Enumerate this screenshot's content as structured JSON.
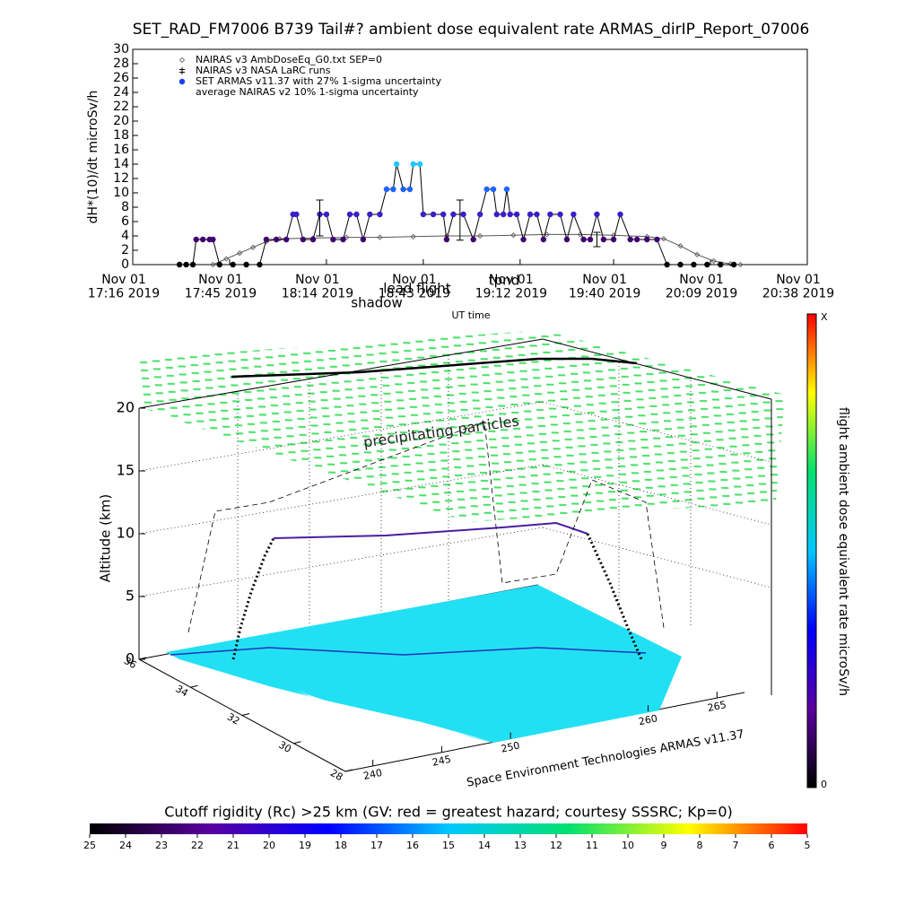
{
  "chart_data": [
    {
      "type": "line",
      "title": "SET_RAD_FM7006  B739 Tail#? ambient dose equivalent rate ARMAS_dirIP_Report_07006",
      "ylabel": "dH*(10)/dt microSv/h",
      "xlabel": "UT time",
      "xlim": [
        "17:16",
        "20:38"
      ],
      "xticks": [
        {
          "value": "17:16",
          "label": "Nov 01\n17:16 2019"
        },
        {
          "value": "17:45",
          "label": "Nov 01\n17:45 2019"
        },
        {
          "value": "18:14",
          "label": "Nov 01\n18:14 2019"
        },
        {
          "value": "18:43",
          "label": "Nov 01\n18:43 2019"
        },
        {
          "value": "19:12",
          "label": "Nov 01\n19:12 2019"
        },
        {
          "value": "19:40",
          "label": "Nov 01\n19:40 2019"
        },
        {
          "value": "20:09",
          "label": "Nov 01\n20:09 2019"
        },
        {
          "value": "20:38",
          "label": "Nov 01\n20:38 2019"
        }
      ],
      "ylim": [
        0,
        30
      ],
      "yticks": [
        0,
        2,
        4,
        6,
        8,
        10,
        12,
        14,
        16,
        18,
        20,
        22,
        24,
        26,
        28,
        30
      ],
      "legend": "upper left",
      "annotations": [
        "shadow",
        "lead flight",
        "tpnd"
      ],
      "series": [
        {
          "name": "NAIRAS v3 AmbDoseEq_G0.txt SEP=0",
          "marker": "diamond",
          "color": "#555555",
          "x": [
            "17:40",
            "17:44",
            "17:48",
            "17:52",
            "17:56",
            "18:00",
            "18:10",
            "18:20",
            "18:30",
            "18:40",
            "18:50",
            "19:00",
            "19:10",
            "19:20",
            "19:30",
            "19:40",
            "19:50",
            "19:55",
            "20:00",
            "20:05",
            "20:10",
            "20:15",
            "20:18"
          ],
          "values": [
            0,
            0.8,
            1.6,
            2.4,
            3.2,
            3.6,
            3.7,
            3.8,
            3.8,
            3.9,
            4.0,
            4.0,
            4.1,
            4.2,
            4.2,
            4.1,
            3.9,
            3.6,
            2.6,
            1.4,
            0.5,
            0.1,
            0
          ]
        },
        {
          "name": "NAIRAS v3 NASA LaRC runs",
          "marker": "plus",
          "color": "#000000",
          "x": [],
          "values": []
        },
        {
          "name": "SET ARMAS v11.37 with 27% 1-sigma uncertainty",
          "marker": "circle",
          "color": "#1e3cff",
          "x": [
            "17:30",
            "17:32",
            "17:34",
            "17:35",
            "17:37",
            "17:39",
            "17:40",
            "17:42",
            "17:46",
            "17:50",
            "17:54",
            "17:56",
            "17:59",
            "18:02",
            "18:04",
            "18:05",
            "18:07",
            "18:10",
            "18:12",
            "18:14",
            "18:16",
            "18:19",
            "18:21",
            "18:23",
            "18:25",
            "18:27",
            "18:30",
            "18:32",
            "18:34",
            "18:35",
            "18:37",
            "18:39",
            "18:40",
            "18:42",
            "18:43",
            "18:46",
            "18:49",
            "18:50",
            "18:52",
            "18:55",
            "18:58",
            "19:00",
            "19:02",
            "19:04",
            "19:05",
            "19:07",
            "19:08",
            "19:09",
            "19:11",
            "19:13",
            "19:15",
            "19:17",
            "19:19",
            "19:21",
            "19:24",
            "19:26",
            "19:28",
            "19:31",
            "19:33",
            "19:35",
            "19:37",
            "19:40",
            "19:42",
            "19:45",
            "19:47",
            "19:50",
            "19:53",
            "19:56",
            "20:00",
            "20:04",
            "20:08",
            "20:12",
            "20:16"
          ],
          "values": [
            0,
            0,
            0,
            3.5,
            3.5,
            3.5,
            3.5,
            0,
            0,
            0,
            0,
            3.5,
            3.5,
            3.5,
            7,
            7,
            3.5,
            3.5,
            7,
            7,
            3.5,
            3.5,
            7,
            7,
            3.5,
            7,
            7,
            10.5,
            10.5,
            14,
            10.5,
            10.5,
            14,
            14,
            7,
            7,
            7,
            3.5,
            7,
            7,
            3.5,
            7,
            10.5,
            10.5,
            7,
            7,
            10.5,
            7,
            7,
            3.5,
            7,
            7,
            3.5,
            7,
            7,
            3.5,
            7,
            3.5,
            3.5,
            7,
            3.5,
            3.5,
            7,
            3.5,
            3.5,
            3.5,
            3.5,
            0,
            0,
            0,
            0,
            0,
            0
          ],
          "colors": [
            "#000000",
            "#000000",
            "#000000",
            "#400070",
            "#400070",
            "#400070",
            "#400070",
            "#000000",
            "#000000",
            "#000000",
            "#000000",
            "#400070",
            "#400070",
            "#400070",
            "#3a1ec8",
            "#3a1ec8",
            "#400070",
            "#400070",
            "#3a1ec8",
            "#3a1ec8",
            "#400070",
            "#400070",
            "#3a1ec8",
            "#3a1ec8",
            "#400070",
            "#3a1ec8",
            "#3a1ec8",
            "#1e64ff",
            "#1e64ff",
            "#1ec8ff",
            "#1e64ff",
            "#1e64ff",
            "#1ec8ff",
            "#1ec8ff",
            "#3a1ec8",
            "#3a1ec8",
            "#3a1ec8",
            "#400070",
            "#3a1ec8",
            "#3a1ec8",
            "#400070",
            "#3a1ec8",
            "#1e64ff",
            "#1e64ff",
            "#3a1ec8",
            "#3a1ec8",
            "#1e64ff",
            "#3a1ec8",
            "#3a1ec8",
            "#400070",
            "#3a1ec8",
            "#3a1ec8",
            "#400070",
            "#3a1ec8",
            "#3a1ec8",
            "#400070",
            "#3a1ec8",
            "#400070",
            "#400070",
            "#3a1ec8",
            "#400070",
            "#400070",
            "#3a1ec8",
            "#400070",
            "#400070",
            "#400070",
            "#400070",
            "#000000",
            "#000000",
            "#000000",
            "#000000",
            "#000000",
            "#000000"
          ]
        },
        {
          "name": "average NAIRAS v2 10% 1-sigma uncertainty",
          "marker": "none",
          "color": "#000000",
          "x": [
            "18:12",
            "18:54",
            "19:35"
          ],
          "values": [
            6.5,
            6.2,
            3.5
          ],
          "errors": [
            2.5,
            2.8,
            1
          ]
        }
      ]
    },
    {
      "type": "surface3d",
      "zlabel": "Altitude (km)",
      "zlim": [
        0,
        20
      ],
      "zticks": [
        0,
        5,
        10,
        15,
        20
      ],
      "latlim": [
        36,
        28
      ],
      "latticks": [
        36,
        34,
        32,
        30,
        28
      ],
      "lonlim": [
        238,
        267
      ],
      "lonticks": [
        240,
        245,
        250,
        260,
        265
      ],
      "annotations": [
        "precipitating particles",
        "Space Environment Technologies ARMAS v11.37"
      ],
      "colorbar_label": "flight ambient dose equivalent rate microSv/h",
      "colorbar_ticks": [
        "X",
        "0"
      ],
      "colorbar_colors": [
        "#000000",
        "#5a00a0",
        "#0000ff",
        "#00c8ff",
        "#00e070",
        "#ffff00",
        "#ff0000"
      ]
    },
    {
      "type": "colorbar",
      "title": "Cutoff rigidity (Rc) >25 km (GV: red = greatest hazard; courtesy SSSRC; Kp=0)",
      "xlim": [
        25,
        5
      ],
      "xticks": [
        25,
        24,
        23,
        22,
        21,
        20,
        19,
        18,
        17,
        16,
        15,
        14,
        13,
        12,
        11,
        10,
        9,
        8,
        7,
        6,
        5
      ],
      "colors": [
        "#000000",
        "#5a00a0",
        "#0000ff",
        "#00c8ff",
        "#00e070",
        "#ffff00",
        "#ff0000"
      ]
    }
  ]
}
